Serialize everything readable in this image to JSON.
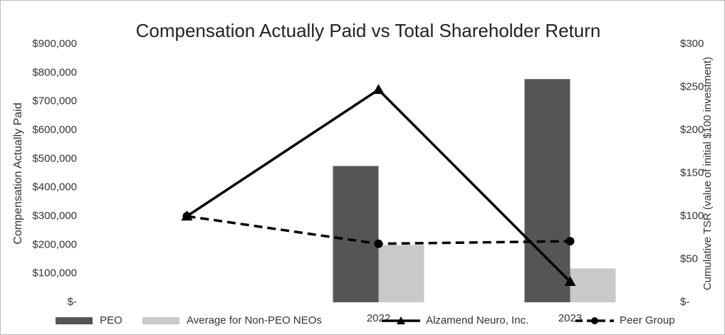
{
  "chart_data": {
    "type": "bar",
    "title": "Compensation Actually Paid vs Total Shareholder Return",
    "y_label": "Compensation Actually Paid",
    "y2_label": "Cumulative TSR (value of initial $100 investment)",
    "categories": [
      null,
      "2022",
      "2023"
    ],
    "series": [
      {
        "name": "PEO",
        "type": "bar",
        "color": "#555555",
        "values": [
          null,
          475000,
          778000
        ]
      },
      {
        "name": "Average for Non-PEO NEOs",
        "type": "bar",
        "color": "#c9c9c9",
        "values": [
          null,
          200000,
          118000
        ]
      },
      {
        "name": "Alzamend Neuro, Inc.",
        "type": "line",
        "axis": "y2",
        "color": "#000000",
        "marker": "triangle",
        "dashed": false,
        "values": [
          100,
          247,
          24
        ]
      },
      {
        "name": "Peer Group",
        "type": "line",
        "axis": "y2",
        "color": "#000000",
        "marker": "circle",
        "dashed": true,
        "values": [
          100,
          68,
          71
        ]
      }
    ],
    "ylim": [
      0,
      900000
    ],
    "yticks": [
      {
        "value": 0,
        "label": "$-"
      },
      {
        "value": 100000,
        "label": "$100,000"
      },
      {
        "value": 200000,
        "label": "$200,000"
      },
      {
        "value": 300000,
        "label": "$300,000"
      },
      {
        "value": 400000,
        "label": "$400,000"
      },
      {
        "value": 500000,
        "label": "$500,000"
      },
      {
        "value": 600000,
        "label": "$600,000"
      },
      {
        "value": 700000,
        "label": "$700,000"
      },
      {
        "value": 800000,
        "label": "$800,000"
      },
      {
        "value": 900000,
        "label": "$900,000"
      }
    ],
    "y2lim": [
      0,
      300
    ],
    "y2ticks": [
      {
        "value": 0,
        "label": "$-"
      },
      {
        "value": 50,
        "label": "$50"
      },
      {
        "value": 100,
        "label": "$100"
      },
      {
        "value": 150,
        "label": "$150"
      },
      {
        "value": 200,
        "label": "$200"
      },
      {
        "value": 250,
        "label": "$250"
      },
      {
        "value": 300,
        "label": "$300"
      }
    ],
    "legend": "bottom"
  }
}
